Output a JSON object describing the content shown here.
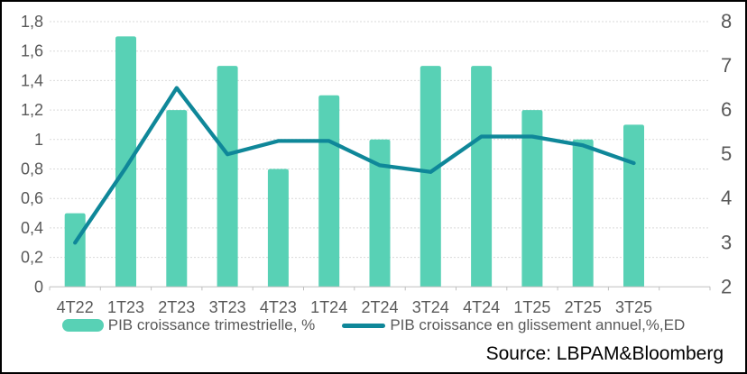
{
  "chart_data": {
    "type": "bar+line combo",
    "categories": [
      "4T22",
      "1T23",
      "2T23",
      "3T23",
      "4T23",
      "1T24",
      "2T24",
      "3T24",
      "4T24",
      "1T25",
      "2T25",
      "3T25"
    ],
    "series": [
      {
        "name": "PIB croissance trimestrielle, %",
        "type": "bar",
        "axis": "left",
        "color": "#58d1b5",
        "values": [
          0.5,
          1.7,
          1.2,
          1.5,
          0.8,
          1.3,
          1.0,
          1.5,
          1.5,
          1.2,
          1.0,
          1.1
        ]
      },
      {
        "name": "PIB croissance en glissement annuel,%,ED",
        "type": "line",
        "axis": "right",
        "color": "#0f8799",
        "values": [
          3.0,
          4.7,
          6.5,
          5.0,
          5.3,
          5.3,
          4.75,
          4.6,
          5.4,
          5.4,
          5.2,
          4.8
        ]
      }
    ],
    "left_axis": {
      "min": 0,
      "max": 1.8,
      "step": 0.2,
      "tick_labels": [
        "0",
        "0,2",
        "0,4",
        "0,6",
        "0,8",
        "1",
        "1,2",
        "1,4",
        "1,6",
        "1,8"
      ]
    },
    "right_axis": {
      "min": 2,
      "max": 8,
      "step": 1,
      "tick_labels": [
        "2",
        "3",
        "4",
        "5",
        "6",
        "7",
        "8"
      ]
    },
    "grid": true,
    "gridline_style": "dotted",
    "legend_position": "bottom",
    "title": "",
    "xlabel": "",
    "ylabel": "",
    "empty_trailing_slot": true
  },
  "source": "Source: LBPAM&Bloomberg",
  "colors": {
    "bar": "#58d1b5",
    "line": "#0f8799",
    "grid": "#d9d9d9",
    "axis": "#bfbfbf",
    "tick_text": "#595959",
    "source_text": "#000000",
    "frame_border": "#000000",
    "background": "#ffffff"
  }
}
